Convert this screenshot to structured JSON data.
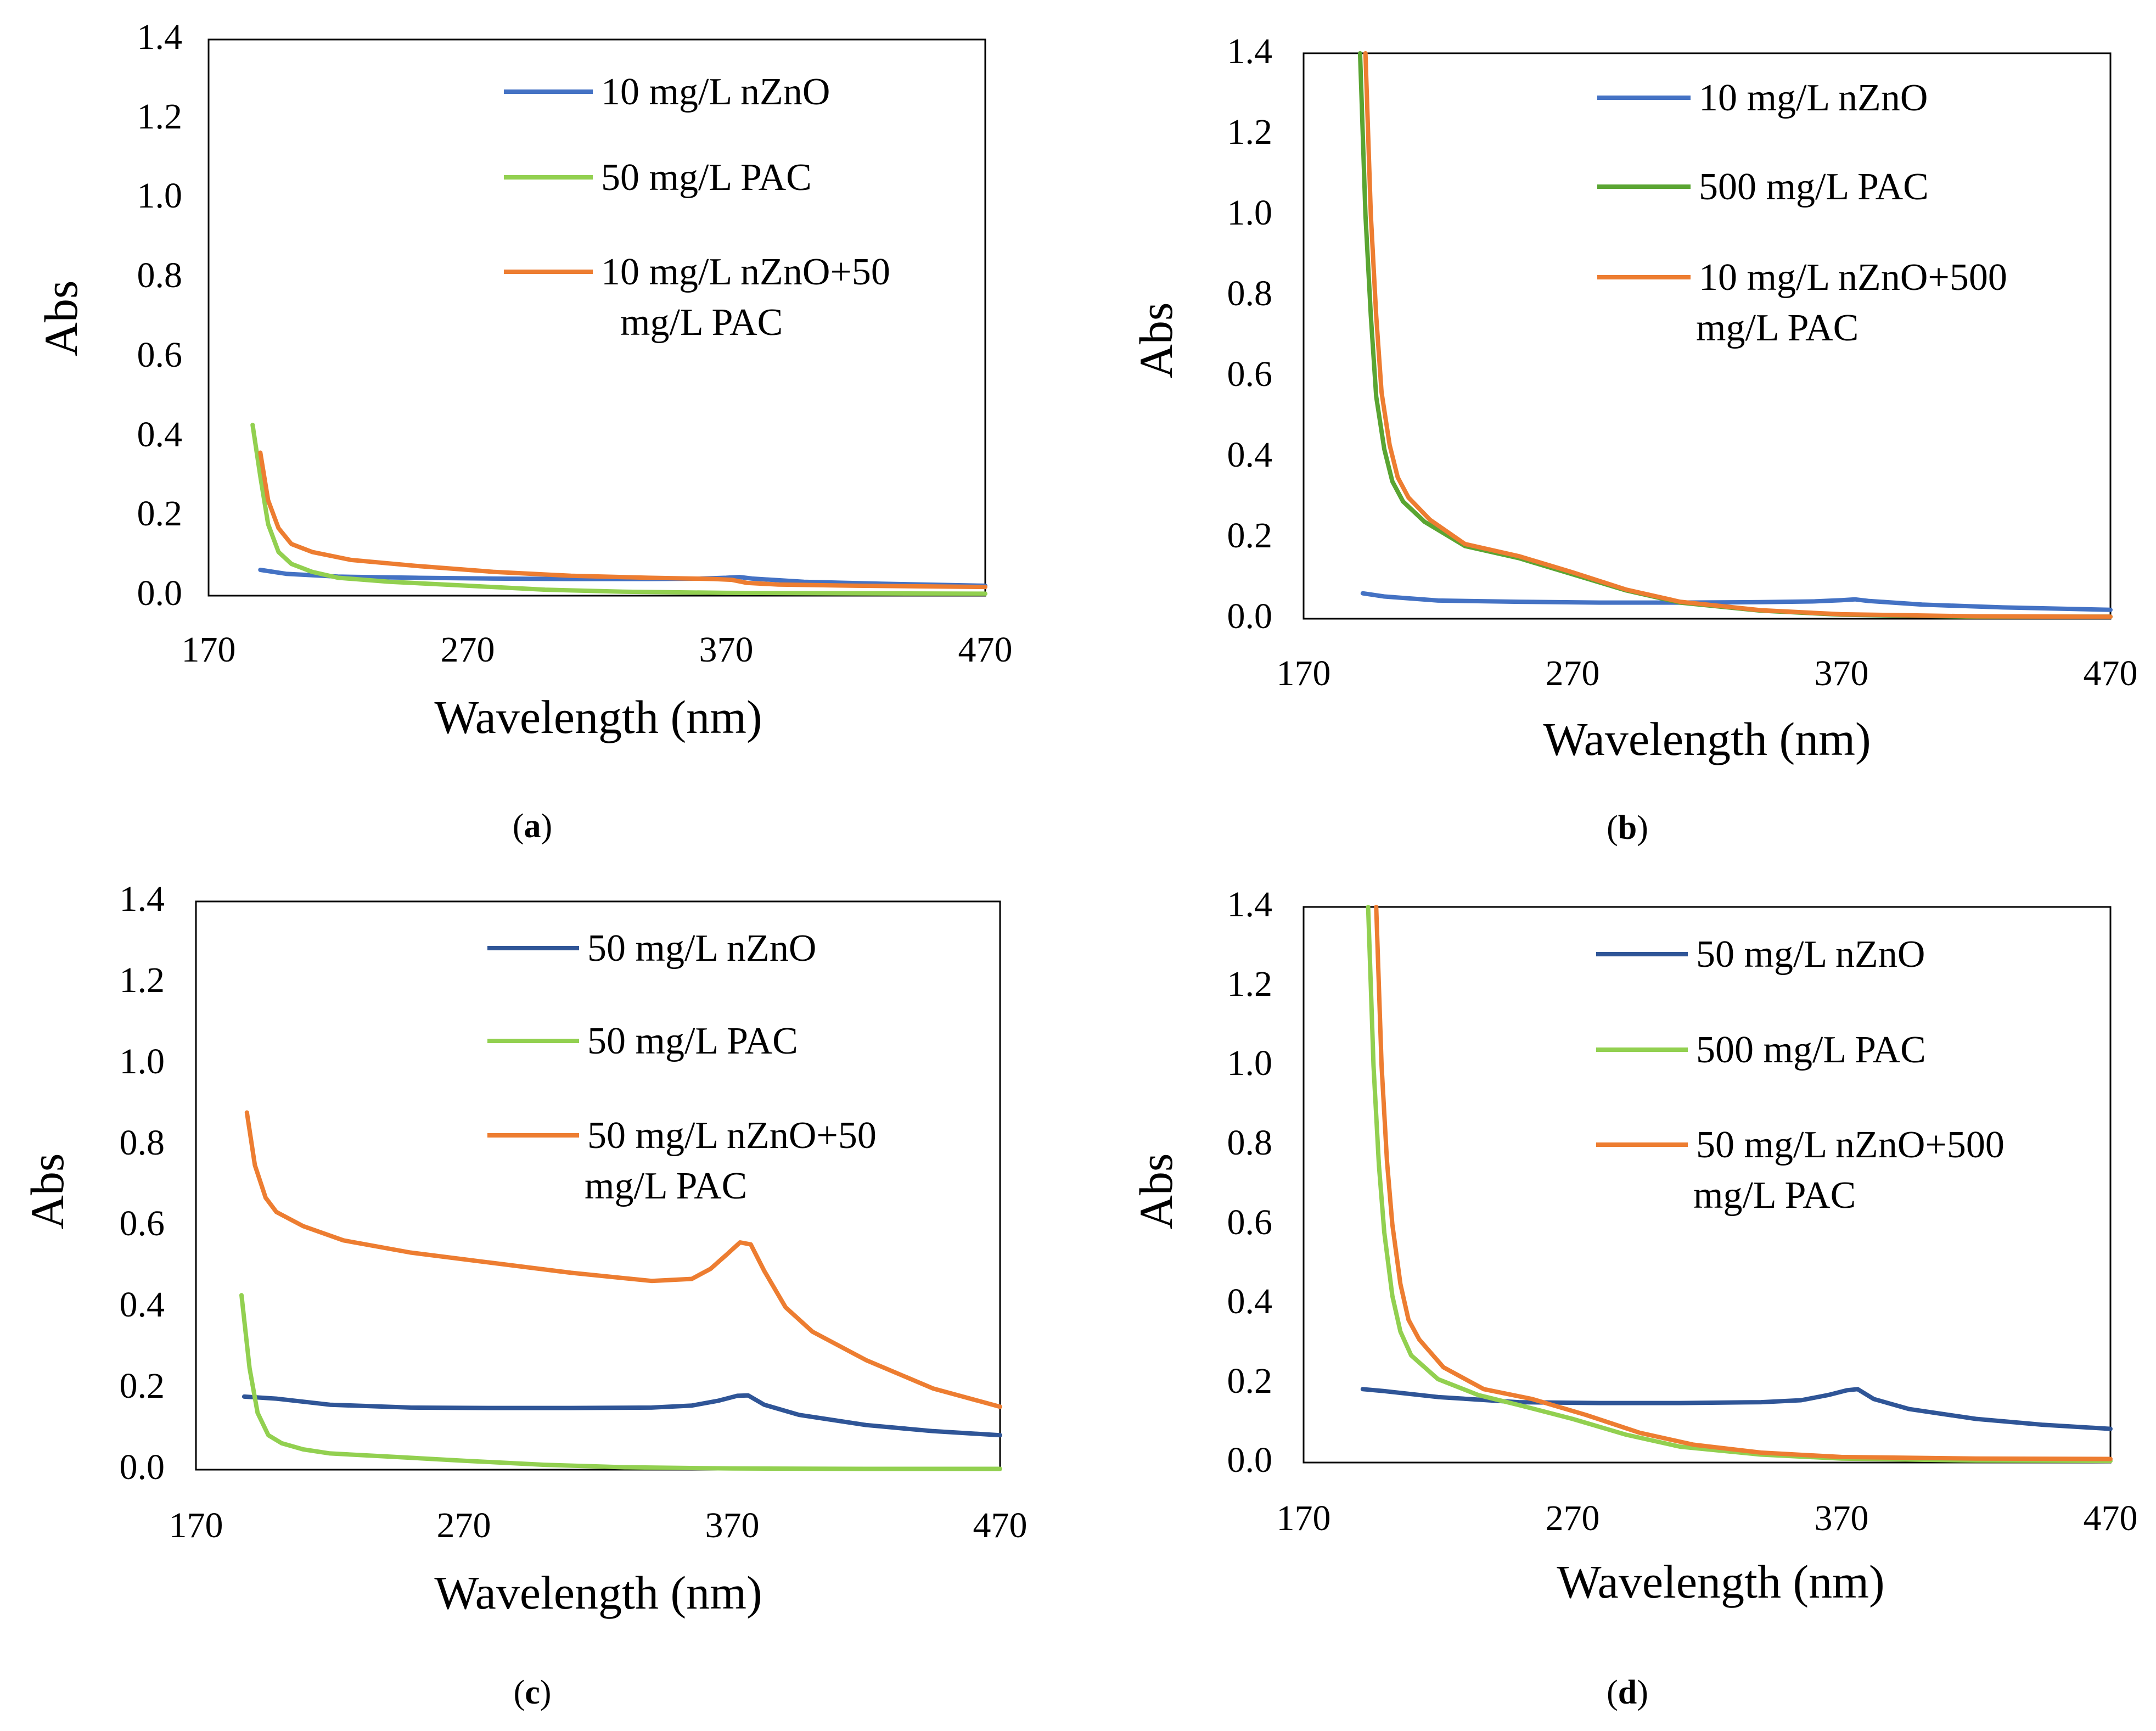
{
  "figure": {
    "colors": {
      "light_blue": "#4472C4",
      "dark_blue": "#2F5597",
      "light_green": "#92D050",
      "dark_green": "#5AA532",
      "orange": "#ED7D31",
      "axis": "#000000"
    }
  },
  "chart_data": [
    {
      "type": "line",
      "caption": "a",
      "xlabel": "Wavelength (nm)",
      "ylabel": "Abs",
      "xlim": [
        170,
        470
      ],
      "ylim": [
        0,
        1.4
      ],
      "xticks": [
        "170",
        "270",
        "370",
        "470"
      ],
      "yticks": [
        "0.0",
        "0.2",
        "0.4",
        "0.6",
        "0.8",
        "1.0",
        "1.2",
        "1.4"
      ],
      "legend_position": "top-right",
      "series": [
        {
          "name": "10 mg/L nZnO",
          "color": "#4472C4",
          "x": [
            190,
            200,
            220,
            250,
            280,
            310,
            340,
            360,
            370,
            375,
            380,
            400,
            430,
            470
          ],
          "y": [
            0.065,
            0.055,
            0.048,
            0.045,
            0.043,
            0.042,
            0.042,
            0.043,
            0.045,
            0.047,
            0.043,
            0.035,
            0.03,
            0.025
          ]
        },
        {
          "name": "50 mg/L PAC",
          "color": "#92D050",
          "x": [
            187,
            190,
            193,
            197,
            202,
            210,
            220,
            240,
            270,
            300,
            330,
            370,
            420,
            470
          ],
          "y": [
            0.43,
            0.3,
            0.18,
            0.11,
            0.08,
            0.06,
            0.045,
            0.035,
            0.025,
            0.015,
            0.01,
            0.007,
            0.006,
            0.005
          ]
        },
        {
          "name": "10 mg/L nZnO+50 mg/L PAC",
          "color": "#ED7D31",
          "x": [
            190,
            193,
            197,
            202,
            210,
            225,
            250,
            280,
            310,
            340,
            365,
            372,
            378,
            390,
            420,
            470
          ],
          "y": [
            0.36,
            0.24,
            0.17,
            0.13,
            0.11,
            0.09,
            0.075,
            0.06,
            0.05,
            0.045,
            0.042,
            0.04,
            0.032,
            0.028,
            0.025,
            0.022
          ]
        }
      ]
    },
    {
      "type": "line",
      "caption": "b",
      "xlabel": "Wavelength (nm)",
      "ylabel": "Abs",
      "xlim": [
        170,
        470
      ],
      "ylim": [
        0,
        1.4
      ],
      "xticks": [
        "170",
        "270",
        "370",
        "470"
      ],
      "yticks": [
        "0.0",
        "0.2",
        "0.4",
        "0.6",
        "0.8",
        "1.0",
        "1.2",
        "1.4"
      ],
      "legend_position": "top-right",
      "series": [
        {
          "name": "10 mg/L nZnO",
          "color": "#4472C4",
          "x": [
            192,
            200,
            220,
            250,
            280,
            310,
            340,
            360,
            370,
            375,
            380,
            400,
            430,
            470
          ],
          "y": [
            0.063,
            0.055,
            0.045,
            0.042,
            0.04,
            0.04,
            0.041,
            0.043,
            0.046,
            0.048,
            0.044,
            0.035,
            0.028,
            0.022
          ]
        },
        {
          "name": "500 mg/L PAC",
          "color": "#5AA532",
          "x": [
            191,
            193,
            195,
            197,
            200,
            203,
            207,
            215,
            230,
            250,
            270,
            290,
            310,
            340,
            370,
            420,
            470
          ],
          "y": [
            1.4,
            1.0,
            0.75,
            0.55,
            0.42,
            0.34,
            0.29,
            0.24,
            0.18,
            0.15,
            0.11,
            0.07,
            0.04,
            0.02,
            0.01,
            0.005,
            0.005
          ]
        },
        {
          "name": "10 mg/L nZnO+500 mg/L PAC",
          "color": "#ED7D31",
          "x": [
            193,
            195,
            197,
            199,
            202,
            205,
            209,
            217,
            230,
            250,
            270,
            290,
            310,
            340,
            370,
            420,
            470
          ],
          "y": [
            1.4,
            1.0,
            0.75,
            0.56,
            0.43,
            0.35,
            0.3,
            0.245,
            0.185,
            0.155,
            0.115,
            0.072,
            0.042,
            0.021,
            0.011,
            0.006,
            0.005
          ]
        }
      ]
    },
    {
      "type": "line",
      "caption": "c",
      "xlabel": "Wavelength (nm)",
      "ylabel": "Abs",
      "xlim": [
        170,
        470
      ],
      "ylim": [
        0,
        1.4
      ],
      "xticks": [
        "170",
        "270",
        "370",
        "470"
      ],
      "yticks": [
        "0.0",
        "0.2",
        "0.4",
        "0.6",
        "0.8",
        "1.0",
        "1.2",
        "1.4"
      ],
      "legend_position": "top-right",
      "series": [
        {
          "name": "50 mg/L nZnO",
          "color": "#2F5597",
          "x": [
            188,
            200,
            220,
            250,
            280,
            310,
            340,
            355,
            365,
            372,
            376,
            382,
            395,
            420,
            445,
            470
          ],
          "y": [
            0.18,
            0.175,
            0.16,
            0.153,
            0.152,
            0.152,
            0.153,
            0.158,
            0.17,
            0.182,
            0.183,
            0.16,
            0.135,
            0.11,
            0.095,
            0.085
          ]
        },
        {
          "name": "50 mg/L PAC",
          "color": "#92D050",
          "x": [
            187,
            190,
            193,
            197,
            202,
            210,
            220,
            240,
            270,
            300,
            330,
            370,
            420,
            470
          ],
          "y": [
            0.43,
            0.25,
            0.14,
            0.085,
            0.065,
            0.05,
            0.04,
            0.033,
            0.022,
            0.012,
            0.006,
            0.003,
            0.002,
            0.002
          ]
        },
        {
          "name": "50 mg/L nZnO+50 mg/L PAC",
          "color": "#ED7D31",
          "x": [
            189,
            192,
            196,
            200,
            210,
            225,
            250,
            280,
            310,
            340,
            355,
            362,
            368,
            373,
            377,
            382,
            390,
            400,
            420,
            445,
            470
          ],
          "y": [
            0.88,
            0.75,
            0.67,
            0.635,
            0.6,
            0.565,
            0.535,
            0.51,
            0.485,
            0.465,
            0.47,
            0.495,
            0.53,
            0.56,
            0.555,
            0.49,
            0.4,
            0.34,
            0.27,
            0.2,
            0.155
          ]
        }
      ]
    },
    {
      "type": "line",
      "caption": "d",
      "xlabel": "Wavelength (nm)",
      "ylabel": "Abs",
      "xlim": [
        170,
        470
      ],
      "ylim": [
        0,
        1.4
      ],
      "xticks": [
        "170",
        "270",
        "370",
        "470"
      ],
      "yticks": [
        "0.0",
        "0.2",
        "0.4",
        "0.6",
        "0.8",
        "1.0",
        "1.2",
        "1.4"
      ],
      "legend_position": "top-right",
      "series": [
        {
          "name": "50 mg/L nZnO",
          "color": "#2F5597",
          "x": [
            192,
            200,
            220,
            250,
            280,
            310,
            340,
            355,
            365,
            372,
            376,
            382,
            395,
            420,
            445,
            470
          ],
          "y": [
            0.185,
            0.18,
            0.165,
            0.152,
            0.15,
            0.15,
            0.152,
            0.157,
            0.17,
            0.182,
            0.185,
            0.16,
            0.135,
            0.11,
            0.095,
            0.085
          ]
        },
        {
          "name": "500 mg/L PAC",
          "color": "#92D050",
          "x": [
            194,
            196,
            198,
            200,
            203,
            206,
            210,
            220,
            235,
            250,
            270,
            290,
            310,
            340,
            370,
            420,
            470
          ],
          "y": [
            1.4,
            1.0,
            0.75,
            0.58,
            0.42,
            0.33,
            0.27,
            0.21,
            0.17,
            0.145,
            0.11,
            0.07,
            0.04,
            0.02,
            0.01,
            0.005,
            0.004
          ]
        },
        {
          "name": "50 mg/L nZnO+500 mg/L PAC",
          "color": "#ED7D31",
          "x": [
            197,
            199,
            201,
            203,
            206,
            209,
            213,
            222,
            237,
            255,
            275,
            295,
            315,
            340,
            370,
            420,
            470
          ],
          "y": [
            1.4,
            1.0,
            0.76,
            0.6,
            0.45,
            0.36,
            0.31,
            0.24,
            0.185,
            0.16,
            0.12,
            0.075,
            0.045,
            0.025,
            0.014,
            0.01,
            0.009
          ]
        }
      ]
    }
  ]
}
